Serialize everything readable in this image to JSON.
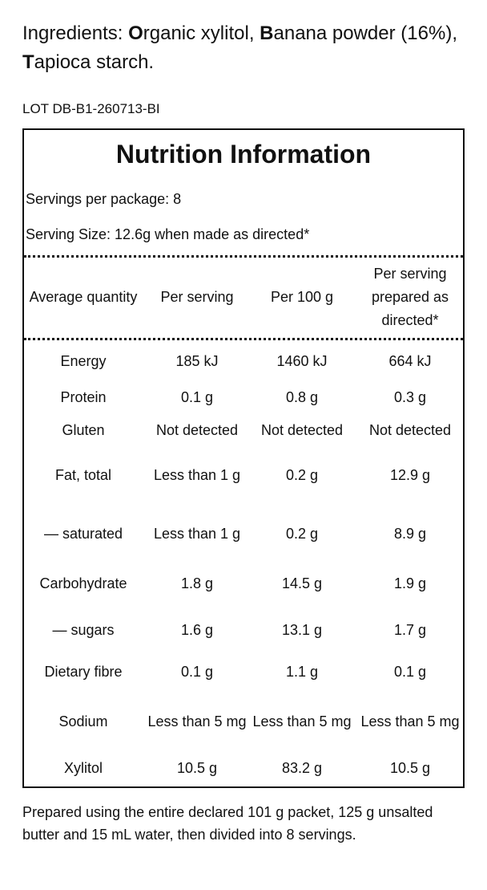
{
  "ingredients": {
    "label": "Ingredients: ",
    "items": [
      {
        "initial": "O",
        "rest": "rganic xylitol",
        "sep": ", "
      },
      {
        "initial": "B",
        "rest": "anana powder (16%)",
        "sep": ", "
      },
      {
        "initial": "T",
        "rest": "apioca starch",
        "sep": "."
      }
    ]
  },
  "lot": "LOT DB-B1-260713-BI",
  "panel": {
    "title": "Nutrition Information",
    "servings_per_package": "Servings per package: 8",
    "serving_size": "Serving Size: 12.6g when made as directed*"
  },
  "table": {
    "columns": [
      "Average quantity",
      "Per serving",
      "Per 100 g",
      "Per serving prepared as directed*"
    ],
    "rows": [
      [
        "Energy",
        "185 kJ",
        "1460 kJ",
        "664 kJ"
      ],
      [
        "Protein",
        "0.1 g",
        "0.8 g",
        "0.3 g"
      ],
      [
        "Gluten",
        "Not detected",
        "Not detected",
        "Not detected"
      ],
      [
        "Fat, total",
        "Less than 1 g",
        "0.2 g",
        "12.9 g"
      ],
      [
        "— saturated",
        "Less than 1 g",
        "0.2 g",
        "8.9 g"
      ],
      [
        "Carbohydrate",
        "1.8 g",
        "14.5 g",
        "1.9 g"
      ],
      [
        "— sugars",
        "1.6 g",
        "13.1 g",
        "1.7 g"
      ],
      [
        "Dietary fibre",
        "0.1 g",
        "1.1 g",
        "0.1 g"
      ],
      [
        "Sodium",
        "Less than 5 mg",
        "Less than 5 mg",
        "Less than 5 mg"
      ],
      [
        "Xylitol",
        "10.5 g",
        "83.2 g",
        "10.5 g"
      ]
    ]
  },
  "footnote": "Prepared using the entire declared 101 g packet, 125 g unsalted butter and 15 mL water, then divided into 8 servings."
}
